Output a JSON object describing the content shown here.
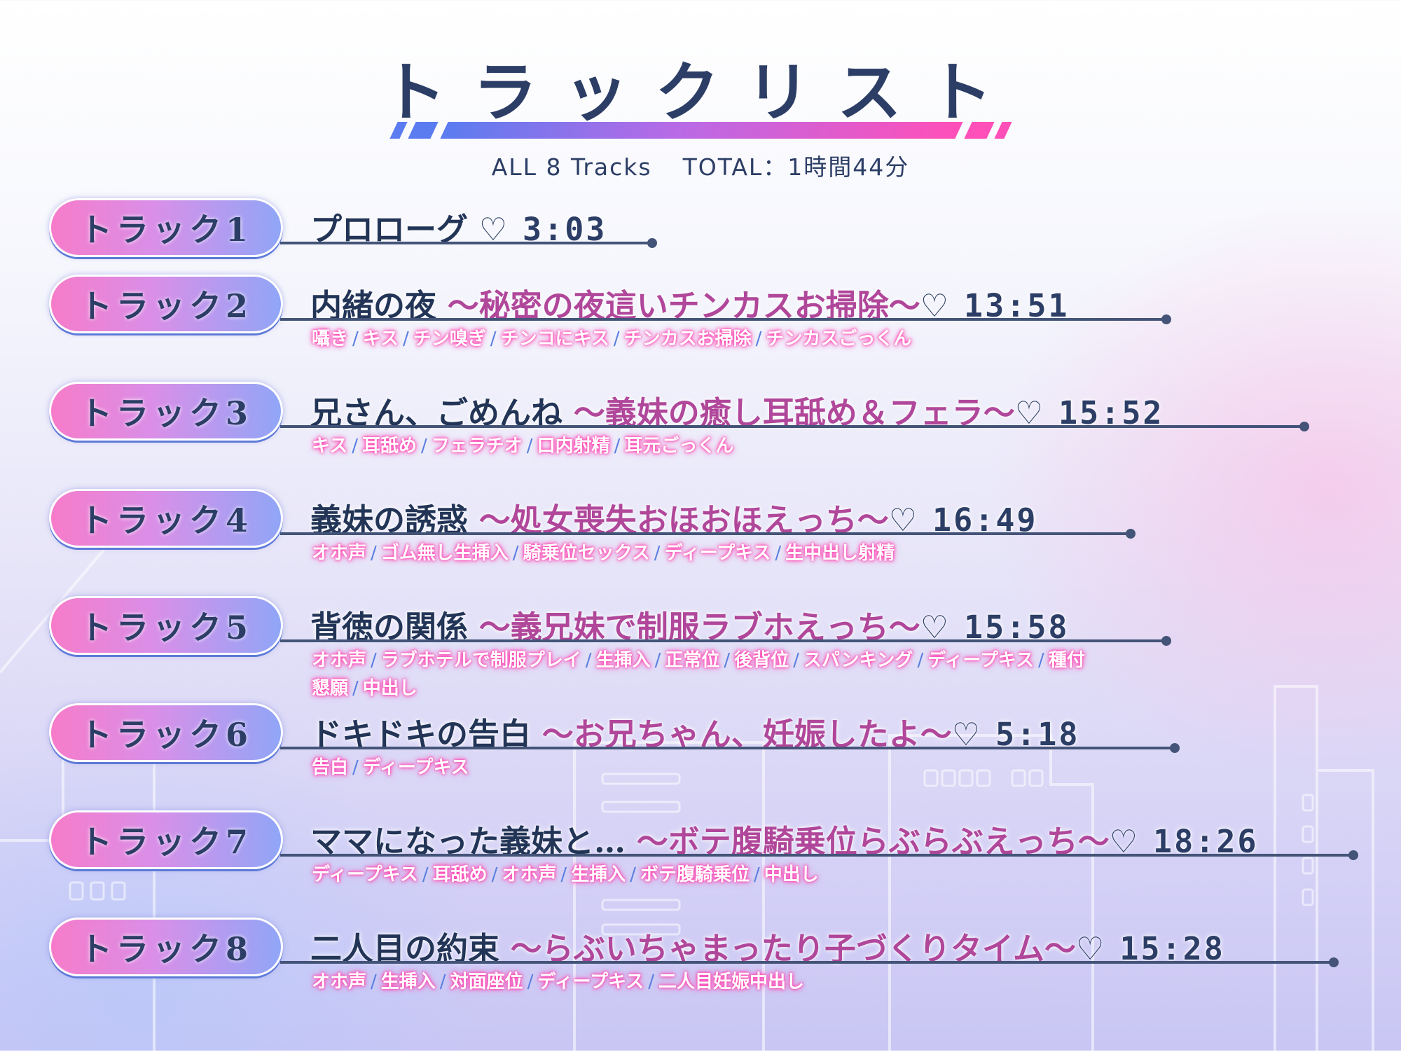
{
  "header": {
    "title": "トラックリスト",
    "all_tracks": "ALL 8 Tracks",
    "total": "TOTAL：1時間44分"
  },
  "colors": {
    "navy": "#2c3e66",
    "pink": "#ff4fb8",
    "blue": "#5a7fe0"
  },
  "tracks": [
    {
      "label": "トラック1",
      "title": "プロローグ",
      "subtitle": "",
      "heart": "♡",
      "time": "3:03",
      "tags": []
    },
    {
      "label": "トラック2",
      "title": "内緒の夜",
      "subtitle": "～秘密の夜這いチンカスお掃除～",
      "heart": "♡",
      "time": "13:51",
      "tags": [
        "囁き",
        "キス",
        "チン嗅ぎ",
        "チンコにキス",
        "チンカスお掃除",
        "チンカスごっくん"
      ]
    },
    {
      "label": "トラック3",
      "title": "兄さん、ごめんね",
      "subtitle": "～義妹の癒し耳舐め＆フェラ～",
      "heart": "♡",
      "time": "15:52",
      "tags": [
        "キス",
        "耳舐め",
        "フェラチオ",
        "口内射精",
        "耳元ごっくん"
      ]
    },
    {
      "label": "トラック4",
      "title": "義妹の誘惑",
      "subtitle": "～処女喪失おほおほえっち～",
      "heart": "♡",
      "time": "16:49",
      "tags": [
        "オホ声",
        "ゴム無し生挿入",
        "騎乗位セックス",
        "ディープキス",
        "生中出し射精"
      ]
    },
    {
      "label": "トラック5",
      "title": "背徳の関係",
      "subtitle": "～義兄妹で制服ラブホえっち～",
      "heart": "♡",
      "time": "15:58",
      "tags": [
        "オホ声",
        "ラブホテルで制服プレイ",
        "生挿入",
        "正常位",
        "後背位",
        "スパンキング",
        "ディープキス",
        "種付懇願",
        "中出し"
      ]
    },
    {
      "label": "トラック6",
      "title": "ドキドキの告白",
      "subtitle": "～お兄ちゃん、妊娠したよ～",
      "heart": "♡",
      "time": "5:18",
      "tags": [
        "告白",
        "ディープキス"
      ]
    },
    {
      "label": "トラック7",
      "title": "ママになった義妹と…",
      "subtitle": "～ボテ腹騎乗位らぶらぶえっち～",
      "heart": "♡",
      "time": "18:26",
      "tags": [
        "ディープキス",
        "耳舐め",
        "オホ声",
        "生挿入",
        "ボテ腹騎乗位",
        "中出し"
      ]
    },
    {
      "label": "トラック8",
      "title": "二人目の約束",
      "subtitle": "～らぶいちゃまったり子づくりタイム～",
      "heart": "♡",
      "time": "15:28",
      "tags": [
        "オホ声",
        "生挿入",
        "対面座位",
        "ディープキス",
        "二人目妊娠中出し"
      ]
    }
  ]
}
